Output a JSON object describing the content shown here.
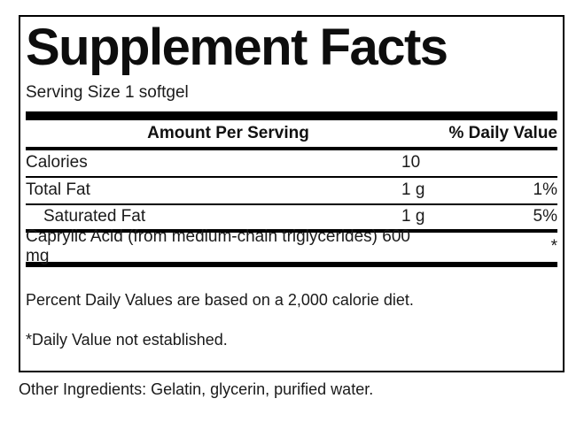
{
  "label": {
    "title": "Supplement Facts",
    "serving_size": "Serving Size 1 softgel",
    "header": {
      "amount_per_serving": "Amount Per Serving",
      "daily_value": "% Daily Value"
    },
    "rows": [
      {
        "name": "Calories",
        "amount": "10",
        "dv": ""
      },
      {
        "name": "Total Fat",
        "amount": "1 g",
        "dv": "1%"
      },
      {
        "name": "Saturated Fat",
        "amount": "1 g",
        "dv": "5%"
      }
    ],
    "unlisted_row": {
      "name": "Caprylic Acid (from medium-chain triglycerides) 600 mg",
      "dv": "*"
    },
    "footnotes": [
      "Percent Daily Values are based on a 2,000 calorie diet.",
      "*Daily Value not established."
    ]
  },
  "other_ingredients": "Other Ingredients: Gelatin, glycerin, purified water.",
  "colors": {
    "text": "#1a1a1a",
    "line": "#000000",
    "background": "#ffffff"
  }
}
